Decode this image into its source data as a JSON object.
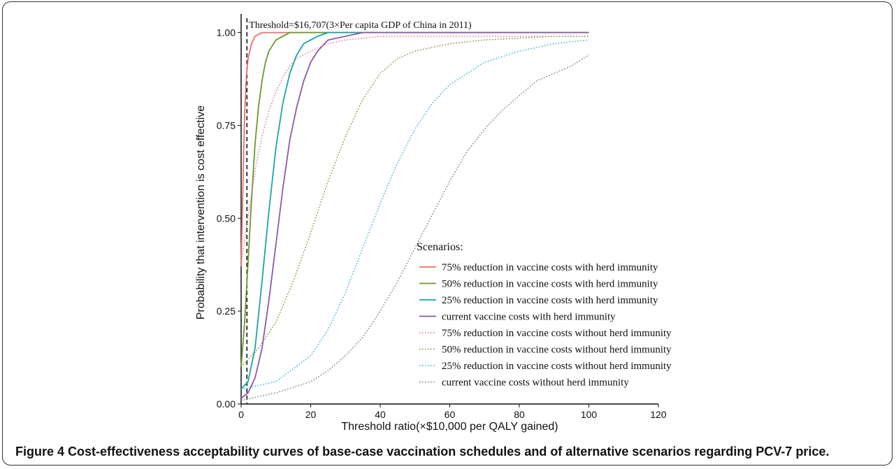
{
  "caption": {
    "figure_label": "Figure 4",
    "text": "Cost-effectiveness acceptability curves of base-case vaccination schedules and of alternative scenarios regarding PCV-7 price."
  },
  "chart_data": {
    "type": "line",
    "xlabel": "Threshold ratio(×$10,000 per QALY gained)",
    "ylabel": "Probability that intervention is cost effective",
    "xlim": [
      0,
      120
    ],
    "ylim": [
      0,
      1.05
    ],
    "x_ticks": [
      "0",
      "20",
      "40",
      "60",
      "80",
      "100",
      "120"
    ],
    "y_ticks": [
      "0.00",
      "0.25",
      "0.50",
      "0.75",
      "1.00"
    ],
    "threshold": {
      "x": 1.6707,
      "label": "Threshold=$16,707(3×Per capita  GDP of China in 2011)"
    },
    "legend": {
      "title": "Scenarios:",
      "placement": "right"
    },
    "series": [
      {
        "name": "75% reduction in vaccine costs with herd immunity",
        "color": "#e8726a",
        "style": "solid",
        "x": [
          0,
          0.5,
          1,
          1.5,
          2,
          3,
          4,
          5,
          6,
          8,
          100
        ],
        "y": [
          0.37,
          0.58,
          0.78,
          0.88,
          0.93,
          0.97,
          0.99,
          0.995,
          1.0,
          1.0,
          1.0
        ]
      },
      {
        "name": "50% reduction in vaccine costs with herd immunity",
        "color": "#6a9a2a",
        "style": "solid",
        "x": [
          0,
          1,
          2,
          3,
          4,
          5,
          6,
          7,
          8,
          10,
          12,
          14,
          16,
          100
        ],
        "y": [
          0.1,
          0.22,
          0.38,
          0.55,
          0.7,
          0.8,
          0.87,
          0.92,
          0.95,
          0.98,
          0.99,
          1.0,
          1.0,
          1.0
        ]
      },
      {
        "name": "25% reduction in vaccine costs with herd immunity",
        "color": "#1aa5a5",
        "style": "solid",
        "x": [
          0,
          2,
          4,
          6,
          8,
          10,
          12,
          14,
          16,
          18,
          20,
          22,
          25,
          30,
          100
        ],
        "y": [
          0.04,
          0.06,
          0.15,
          0.33,
          0.52,
          0.69,
          0.81,
          0.89,
          0.94,
          0.97,
          0.98,
          0.99,
          1.0,
          1.0,
          1.0
        ]
      },
      {
        "name": "current vaccine costs with herd immunity",
        "color": "#8a5aa8",
        "style": "solid",
        "x": [
          0,
          2,
          4,
          6,
          8,
          10,
          12,
          14,
          16,
          18,
          20,
          22,
          25,
          30,
          35,
          100
        ],
        "y": [
          0.015,
          0.03,
          0.07,
          0.15,
          0.28,
          0.43,
          0.58,
          0.71,
          0.8,
          0.87,
          0.92,
          0.95,
          0.98,
          0.99,
          1.0,
          1.0
        ]
      },
      {
        "name": "75% reduction in vaccine costs without herd immunity",
        "color": "#e06b86",
        "style": "dotted",
        "x": [
          0,
          2,
          4,
          6,
          8,
          10,
          12,
          14,
          16,
          18,
          20,
          25,
          30,
          40,
          60,
          100
        ],
        "y": [
          0.38,
          0.5,
          0.63,
          0.72,
          0.79,
          0.84,
          0.88,
          0.91,
          0.93,
          0.94,
          0.95,
          0.97,
          0.98,
          0.99,
          0.99,
          0.99
        ]
      },
      {
        "name": "50% reduction in vaccine costs without herd immunity",
        "color": "#6e8a2c",
        "style": "dotted",
        "x": [
          0,
          5,
          10,
          15,
          20,
          25,
          30,
          35,
          40,
          45,
          50,
          55,
          60,
          70,
          80,
          90,
          100
        ],
        "y": [
          0.1,
          0.15,
          0.22,
          0.33,
          0.46,
          0.6,
          0.72,
          0.82,
          0.89,
          0.93,
          0.95,
          0.96,
          0.97,
          0.98,
          0.985,
          0.99,
          0.99
        ]
      },
      {
        "name": "25% reduction in vaccine costs without herd immunity",
        "color": "#22b0cc",
        "style": "dotted",
        "x": [
          0,
          10,
          20,
          25,
          30,
          35,
          40,
          45,
          50,
          55,
          60,
          65,
          70,
          80,
          90,
          100
        ],
        "y": [
          0.04,
          0.06,
          0.13,
          0.2,
          0.3,
          0.42,
          0.54,
          0.65,
          0.74,
          0.81,
          0.86,
          0.89,
          0.92,
          0.95,
          0.97,
          0.98
        ]
      },
      {
        "name": "current vaccine costs without herd immunity",
        "color": "#8a6a6a",
        "style": "dotted",
        "x": [
          0,
          10,
          20,
          25,
          30,
          35,
          40,
          45,
          50,
          55,
          60,
          65,
          70,
          75,
          80,
          85,
          90,
          95,
          100
        ],
        "y": [
          0.01,
          0.03,
          0.06,
          0.09,
          0.13,
          0.18,
          0.25,
          0.33,
          0.42,
          0.51,
          0.6,
          0.68,
          0.74,
          0.79,
          0.83,
          0.87,
          0.89,
          0.91,
          0.94
        ]
      }
    ]
  }
}
